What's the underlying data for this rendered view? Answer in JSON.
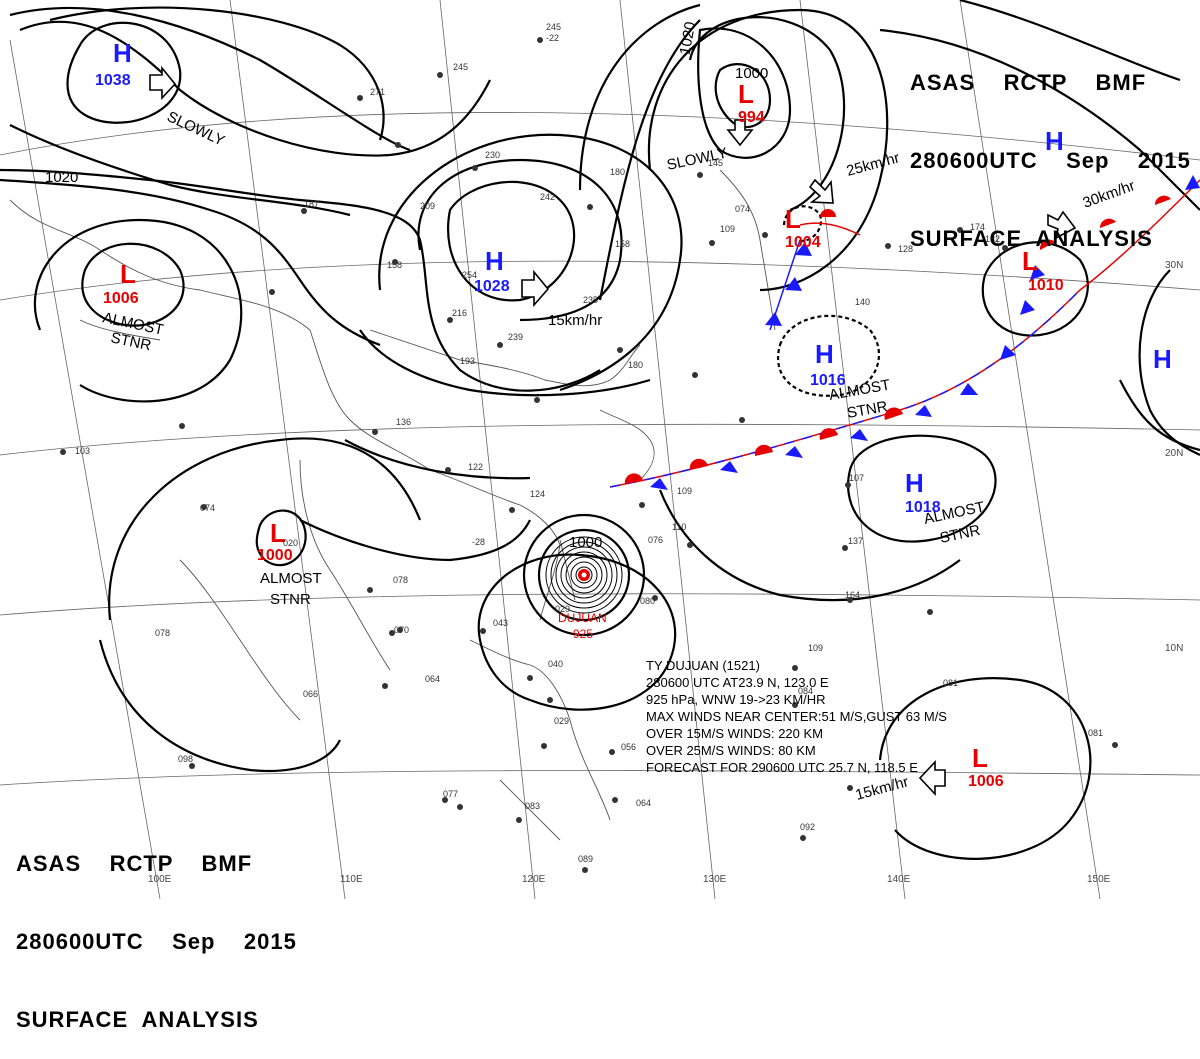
{
  "header": {
    "line1": "ASAS    RCTP    BMF",
    "line2": "280600UTC    Sep    2015",
    "line3": "SURFACE  ANALYSIS"
  },
  "isobar_labels": [
    "1020",
    "1020",
    "1000",
    "1000"
  ],
  "pressure_systems": [
    {
      "type": "H",
      "value": "1038",
      "color": "#1a1aff"
    },
    {
      "type": "H",
      "value": "1028",
      "color": "#1a1aff"
    },
    {
      "type": "L",
      "value": "994",
      "color": "#e60000"
    },
    {
      "type": "L",
      "value": "1004",
      "color": "#e60000"
    },
    {
      "type": "H",
      "value": "",
      "color": "#1a1aff"
    },
    {
      "type": "L",
      "value": "1010",
      "color": "#e60000"
    },
    {
      "type": "H",
      "value": "",
      "color": "#1a1aff"
    },
    {
      "type": "L",
      "value": "1006",
      "color": "#e60000"
    },
    {
      "type": "H",
      "value": "1016",
      "color": "#1a1aff"
    },
    {
      "type": "H",
      "value": "1018",
      "color": "#1a1aff"
    },
    {
      "type": "L",
      "value": "1000",
      "color": "#e60000"
    },
    {
      "type": "L",
      "value": "1006",
      "color": "#e60000"
    }
  ],
  "typhoon": {
    "name": "DUJUAN",
    "pressure": "925"
  },
  "motion_labels": [
    "SLOWLY",
    "SLOWLY",
    "25km/hr",
    "30km/hr",
    "15km/hr",
    "15km/hr"
  ],
  "stationary_labels": [
    [
      "ALMOST",
      "STNR"
    ],
    [
      "ALMOST",
      "STNR"
    ],
    [
      "ALMOST",
      "STNR"
    ],
    [
      "ALMOST",
      "STNR"
    ]
  ],
  "latitude_labels": [
    "30N",
    "20N",
    "10N"
  ],
  "longitude_labels": [
    "100E",
    "110E",
    "120E",
    "130E",
    "140E",
    "150E"
  ],
  "typhoon_info": [
    "TY  DUJUAN  (1521)",
    "280600 UTC AT23.9 N, 123.0 E",
    "925 hPa, WNW  19->23 KM/HR",
    "MAX WINDS NEAR CENTER:51 M/S,GUST 63 M/S",
    "OVER 15M/S WINDS: 220 KM",
    "OVER 25M/S WINDS: 80 KM",
    "FORECAST FOR 290600 UTC 25.7 N, 118.5 E"
  ],
  "colors": {
    "high": "#1a1aff",
    "low": "#e60000",
    "isobar": "#000000",
    "coast": "#555555",
    "grid": "#666666"
  }
}
